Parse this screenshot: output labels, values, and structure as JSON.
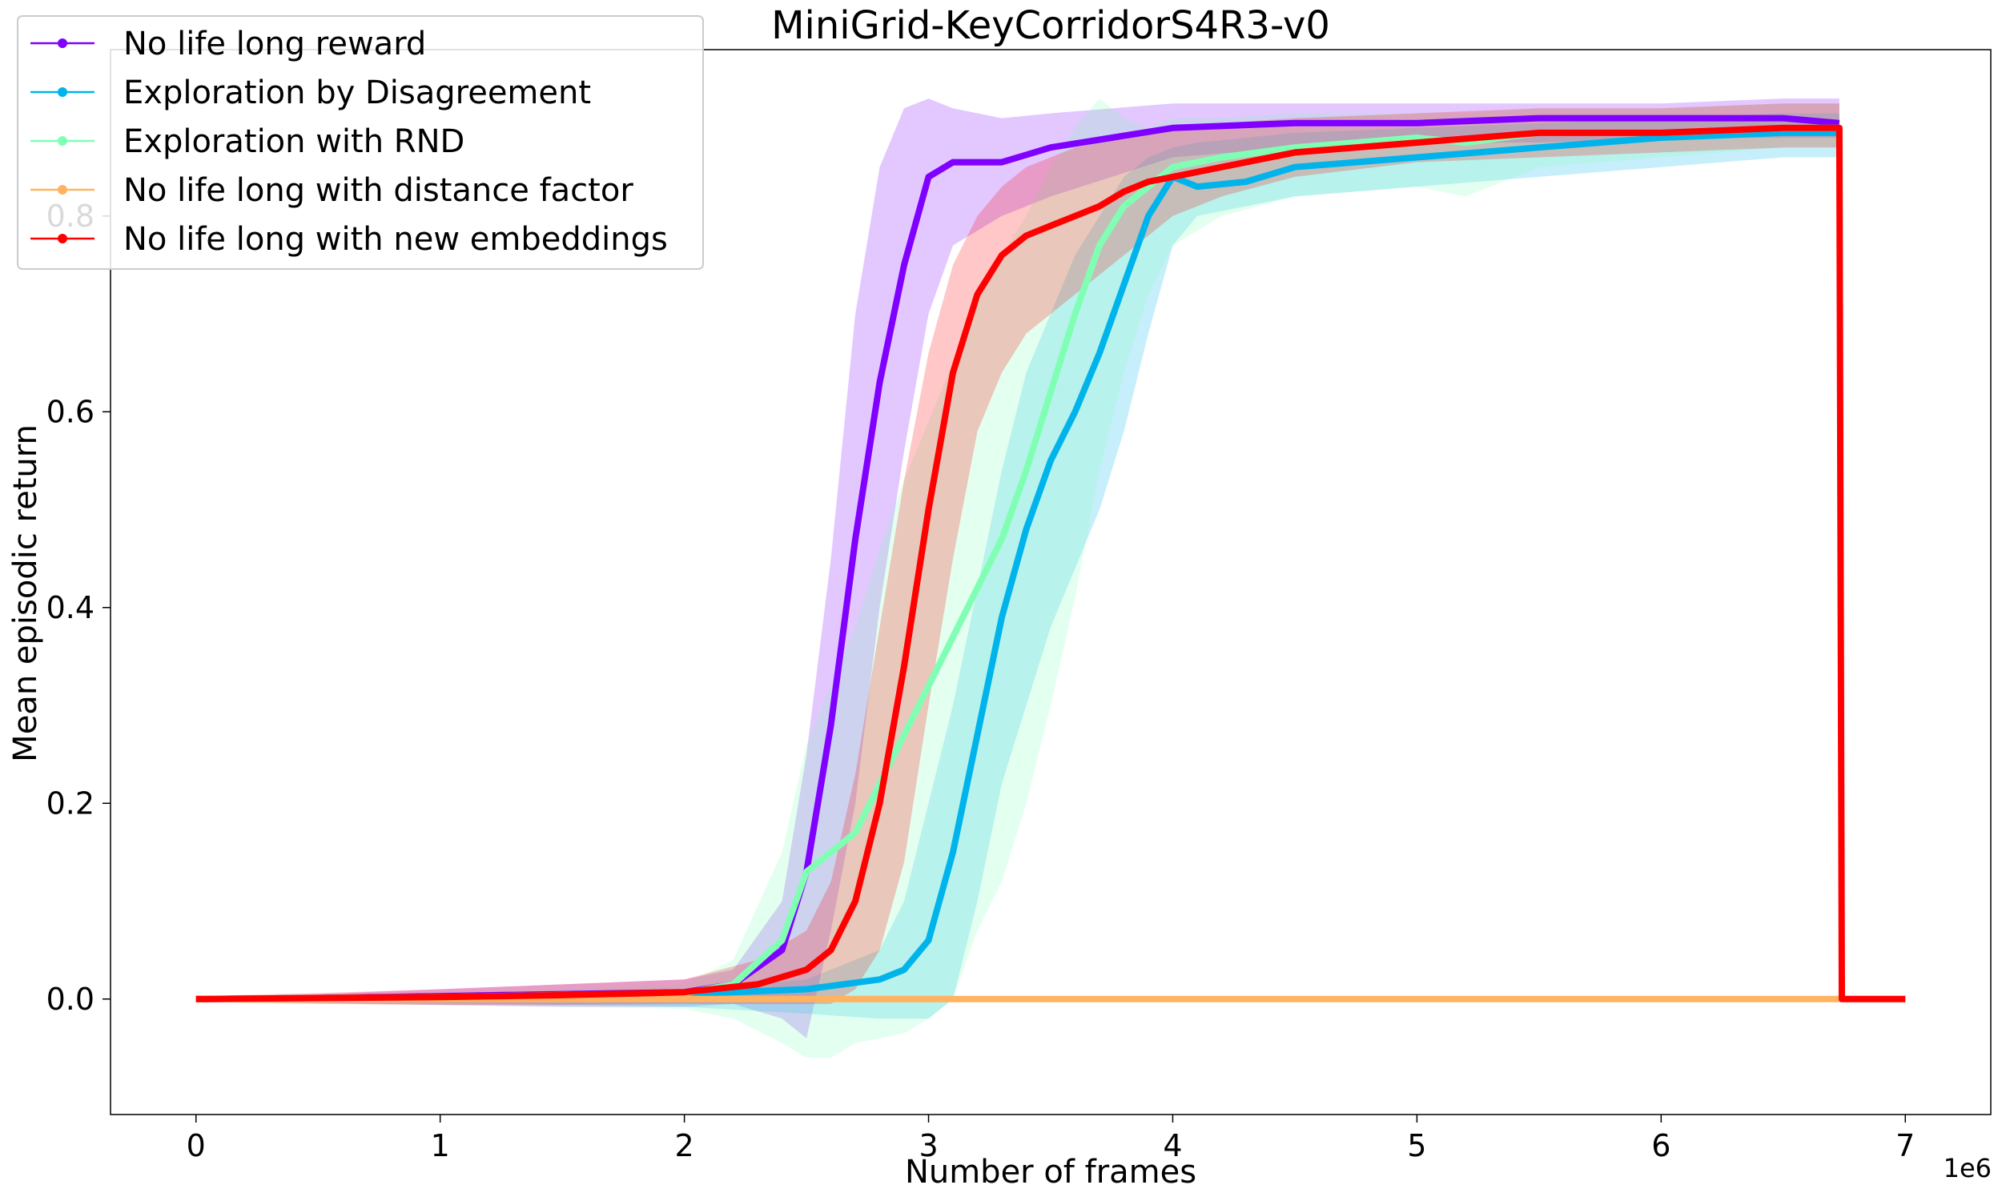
{
  "chart_data": {
    "type": "line",
    "title": "MiniGrid-KeyCorridorS4R3-v0",
    "xlabel": "Number of frames",
    "ylabel": "Mean episodic return",
    "x_multiplier_label": "1e6",
    "xlim": [
      -0.35,
      7.35
    ],
    "ylim": [
      -0.118,
      0.97
    ],
    "xticks": [
      0,
      1,
      2,
      3,
      4,
      5,
      6,
      7
    ],
    "xtick_labels": [
      "0",
      "1",
      "2",
      "3",
      "4",
      "5",
      "6",
      "7"
    ],
    "yticks": [
      0.0,
      0.2,
      0.4,
      0.6,
      0.8
    ],
    "ytick_labels": [
      "0.0",
      "0.2",
      "0.4",
      "0.6",
      "0.8"
    ],
    "grid": false,
    "legend_position": "top-left",
    "series": [
      {
        "name": "No life long reward",
        "color": "#8000ff",
        "x": [
          0,
          0.5,
          1.0,
          1.5,
          2.0,
          2.2,
          2.4,
          2.5,
          2.6,
          2.7,
          2.8,
          2.9,
          3.0,
          3.1,
          3.3,
          3.5,
          4.0,
          4.5,
          5.0,
          5.5,
          6.0,
          6.5,
          6.73
        ],
        "y": [
          0,
          0.001,
          0.003,
          0.005,
          0.007,
          0.015,
          0.05,
          0.13,
          0.28,
          0.47,
          0.63,
          0.75,
          0.84,
          0.855,
          0.855,
          0.87,
          0.89,
          0.895,
          0.895,
          0.9,
          0.9,
          0.9,
          0.895
        ],
        "band_upper": [
          0.002,
          0.005,
          0.01,
          0.015,
          0.02,
          0.03,
          0.1,
          0.25,
          0.45,
          0.7,
          0.85,
          0.91,
          0.92,
          0.91,
          0.9,
          0.905,
          0.915,
          0.915,
          0.915,
          0.915,
          0.915,
          0.92,
          0.92
        ],
        "band_lower": [
          -0.002,
          -0.004,
          -0.006,
          -0.008,
          -0.008,
          -0.005,
          -0.02,
          -0.04,
          0.07,
          0.2,
          0.4,
          0.56,
          0.7,
          0.77,
          0.8,
          0.82,
          0.86,
          0.87,
          0.875,
          0.875,
          0.88,
          0.88,
          0.88
        ]
      },
      {
        "name": "Exploration by Disagreement",
        "color": "#00b4eb",
        "x": [
          0,
          1.0,
          2.0,
          2.5,
          2.8,
          2.9,
          3.0,
          3.1,
          3.2,
          3.3,
          3.4,
          3.5,
          3.6,
          3.7,
          3.8,
          3.9,
          4.0,
          4.1,
          4.3,
          4.5,
          5.0,
          5.5,
          6.0,
          6.5,
          6.73
        ],
        "y": [
          0,
          0.002,
          0.005,
          0.01,
          0.02,
          0.03,
          0.06,
          0.15,
          0.27,
          0.39,
          0.48,
          0.55,
          0.6,
          0.66,
          0.73,
          0.8,
          0.84,
          0.83,
          0.835,
          0.85,
          0.86,
          0.87,
          0.88,
          0.885,
          0.885
        ],
        "band_upper": [
          0.002,
          0.005,
          0.01,
          0.02,
          0.05,
          0.1,
          0.2,
          0.3,
          0.42,
          0.54,
          0.64,
          0.7,
          0.76,
          0.8,
          0.84,
          0.86,
          0.87,
          0.875,
          0.88,
          0.885,
          0.89,
          0.895,
          0.9,
          0.905,
          0.905
        ],
        "band_lower": [
          -0.002,
          -0.004,
          -0.008,
          -0.015,
          -0.02,
          -0.02,
          -0.02,
          0.0,
          0.1,
          0.22,
          0.3,
          0.38,
          0.44,
          0.5,
          0.58,
          0.68,
          0.77,
          0.8,
          0.81,
          0.82,
          0.83,
          0.84,
          0.85,
          0.86,
          0.86
        ]
      },
      {
        "name": "Exploration with RND",
        "color": "#80ffb4",
        "x": [
          0,
          1.0,
          2.0,
          2.2,
          2.4,
          2.5,
          2.6,
          2.7,
          2.8,
          2.9,
          3.0,
          3.1,
          3.2,
          3.3,
          3.4,
          3.5,
          3.6,
          3.7,
          3.8,
          3.9,
          4.0,
          4.2,
          4.5,
          5.0,
          5.2,
          5.5,
          6.0,
          6.5,
          6.73
        ],
        "y": [
          0,
          0.002,
          0.006,
          0.015,
          0.06,
          0.13,
          0.15,
          0.17,
          0.22,
          0.27,
          0.32,
          0.37,
          0.42,
          0.47,
          0.54,
          0.62,
          0.7,
          0.77,
          0.81,
          0.83,
          0.85,
          0.86,
          0.87,
          0.88,
          0.875,
          0.885,
          0.885,
          0.89,
          0.89
        ],
        "band_upper": [
          0.003,
          0.006,
          0.015,
          0.04,
          0.15,
          0.26,
          0.32,
          0.38,
          0.46,
          0.53,
          0.59,
          0.65,
          0.71,
          0.76,
          0.8,
          0.85,
          0.89,
          0.92,
          0.9,
          0.89,
          0.9,
          0.9,
          0.905,
          0.905,
          0.905,
          0.91,
          0.91,
          0.915,
          0.915
        ],
        "band_lower": [
          -0.003,
          -0.006,
          -0.01,
          -0.02,
          -0.045,
          -0.06,
          -0.06,
          -0.045,
          -0.04,
          -0.035,
          -0.02,
          0.0,
          0.07,
          0.12,
          0.2,
          0.3,
          0.41,
          0.54,
          0.64,
          0.72,
          0.77,
          0.8,
          0.82,
          0.83,
          0.82,
          0.85,
          0.86,
          0.87,
          0.87
        ]
      },
      {
        "name": "No life long with distance factor",
        "color": "#ffb360",
        "x": [
          0,
          1.0,
          2.0,
          3.0,
          4.0,
          5.0,
          6.0,
          7.0
        ],
        "y": [
          0,
          0,
          0,
          0,
          0,
          0,
          0,
          0
        ],
        "band_upper": [
          0,
          0,
          0,
          0,
          0,
          0,
          0,
          0
        ],
        "band_lower": [
          0,
          0,
          0,
          0,
          0,
          0,
          0,
          0
        ]
      },
      {
        "name": "No life long with new embeddings",
        "color": "#ff0000",
        "x": [
          0,
          0.5,
          1.0,
          1.5,
          2.0,
          2.3,
          2.5,
          2.6,
          2.7,
          2.8,
          2.9,
          3.0,
          3.1,
          3.2,
          3.3,
          3.4,
          3.5,
          3.6,
          3.7,
          3.8,
          3.9,
          4.0,
          4.2,
          4.5,
          5.0,
          5.5,
          6.0,
          6.5,
          6.73,
          6.74,
          7.0
        ],
        "y": [
          0,
          0.001,
          0.002,
          0.004,
          0.007,
          0.015,
          0.03,
          0.05,
          0.1,
          0.2,
          0.34,
          0.5,
          0.64,
          0.72,
          0.76,
          0.78,
          0.79,
          0.8,
          0.81,
          0.825,
          0.835,
          0.84,
          0.85,
          0.865,
          0.875,
          0.885,
          0.885,
          0.89,
          0.89,
          0.0,
          0.0
        ],
        "band_upper": [
          0.003,
          0.006,
          0.01,
          0.015,
          0.02,
          0.04,
          0.07,
          0.12,
          0.23,
          0.38,
          0.53,
          0.66,
          0.75,
          0.8,
          0.83,
          0.85,
          0.86,
          0.87,
          0.875,
          0.88,
          0.885,
          0.89,
          0.895,
          0.9,
          0.905,
          0.91,
          0.91,
          0.915,
          0.915,
          0,
          0
        ],
        "band_lower": [
          -0.003,
          -0.005,
          -0.006,
          -0.006,
          -0.005,
          -0.005,
          -0.005,
          -0.005,
          0.01,
          0.05,
          0.14,
          0.3,
          0.45,
          0.58,
          0.64,
          0.68,
          0.7,
          0.72,
          0.74,
          0.76,
          0.78,
          0.8,
          0.82,
          0.84,
          0.855,
          0.86,
          0.865,
          0.87,
          0.87,
          0,
          0
        ]
      }
    ]
  }
}
